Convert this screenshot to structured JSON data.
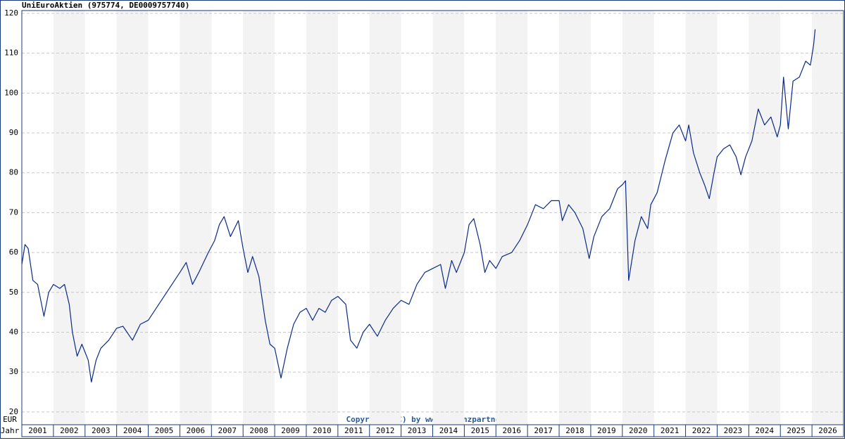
{
  "chart_data": {
    "type": "line",
    "title": "UniEuroAktien (975774, DE0009757740)",
    "copyright": "Copyright (C) by www.Finanzpartner.DE",
    "y_unit": "EUR",
    "x_label": "Jahr",
    "xlim": [
      2001,
      2027
    ],
    "xticks": [
      2001,
      2002,
      2003,
      2004,
      2005,
      2006,
      2007,
      2008,
      2009,
      2010,
      2011,
      2012,
      2013,
      2014,
      2015,
      2016,
      2017,
      2018,
      2019,
      2020,
      2021,
      2022,
      2023,
      2024,
      2025,
      2026
    ],
    "ylim": [
      16.8,
      120.7
    ],
    "yticks": [
      20,
      30,
      40,
      50,
      60,
      70,
      80,
      90,
      100,
      110,
      120
    ],
    "grid": true,
    "series": [
      {
        "color": "#0a2a8a",
        "x": [
          2001.0,
          2001.1,
          2001.2,
          2001.35,
          2001.5,
          2001.7,
          2001.85,
          2002.0,
          2002.2,
          2002.35,
          2002.5,
          2002.6,
          2002.75,
          2002.9,
          2003.1,
          2003.2,
          2003.35,
          2003.5,
          2003.75,
          2004.0,
          2004.2,
          2004.5,
          2004.75,
          2005.0,
          2005.25,
          2005.5,
          2005.75,
          2006.0,
          2006.2,
          2006.4,
          2006.6,
          2006.9,
          2007.1,
          2007.25,
          2007.4,
          2007.6,
          2007.85,
          2008.0,
          2008.15,
          2008.3,
          2008.5,
          2008.7,
          2008.85,
          2009.0,
          2009.2,
          2009.4,
          2009.6,
          2009.8,
          2010.0,
          2010.2,
          2010.4,
          2010.6,
          2010.8,
          2011.0,
          2011.25,
          2011.4,
          2011.6,
          2011.8,
          2012.0,
          2012.25,
          2012.5,
          2012.75,
          2013.0,
          2013.25,
          2013.5,
          2013.75,
          2014.0,
          2014.25,
          2014.4,
          2014.6,
          2014.75,
          2015.0,
          2015.15,
          2015.3,
          2015.5,
          2015.65,
          2015.8,
          2016.0,
          2016.2,
          2016.5,
          2016.75,
          2017.0,
          2017.25,
          2017.5,
          2017.75,
          2018.0,
          2018.1,
          2018.3,
          2018.5,
          2018.75,
          2018.95,
          2019.1,
          2019.35,
          2019.6,
          2019.85,
          2020.0,
          2020.1,
          2020.2,
          2020.4,
          2020.6,
          2020.8,
          2020.9,
          2021.1,
          2021.35,
          2021.6,
          2021.8,
          2022.0,
          2022.1,
          2022.25,
          2022.45,
          2022.6,
          2022.75,
          2022.9,
          2023.0,
          2023.2,
          2023.4,
          2023.6,
          2023.75,
          2023.9,
          2024.1,
          2024.3,
          2024.5,
          2024.7,
          2024.9,
          2025.0,
          2025.1,
          2025.25,
          2025.4,
          2025.6,
          2025.8,
          2025.95,
          2026.05,
          2026.1
        ],
        "values": [
          57,
          62,
          61,
          53,
          52,
          44,
          50,
          52,
          51,
          52,
          47,
          40,
          34,
          37,
          33,
          27.5,
          33,
          36,
          38,
          41,
          41.5,
          38,
          42,
          43,
          46,
          49,
          52,
          55,
          57.5,
          52,
          55,
          60,
          63,
          67,
          69,
          64,
          68,
          61,
          55,
          59,
          54,
          43,
          37,
          36,
          28.5,
          36,
          42,
          45,
          46,
          43,
          46,
          45,
          48,
          49,
          47,
          38,
          36,
          40,
          42,
          39,
          43,
          46,
          48,
          47,
          52,
          55,
          56,
          57,
          51,
          58,
          55,
          60,
          67,
          68.5,
          62,
          55,
          58,
          56,
          59,
          60,
          63,
          67,
          72,
          71,
          73,
          73,
          68,
          72,
          70,
          66,
          58.5,
          64,
          69,
          71,
          76,
          77,
          78,
          53,
          63,
          69,
          66,
          72,
          75,
          83,
          90,
          92,
          88,
          92,
          85,
          80,
          77,
          73.5,
          80,
          84,
          86,
          87,
          84,
          79.5,
          84,
          88,
          96,
          92,
          94,
          89,
          92,
          104,
          91,
          103,
          104,
          108,
          107,
          112,
          116
        ]
      }
    ]
  }
}
